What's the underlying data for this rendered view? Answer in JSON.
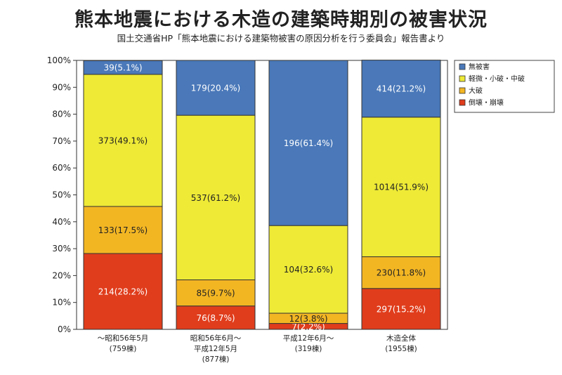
{
  "title": "熊本地震における木造の建築時期別の被害状況",
  "subtitle": "国土交通省HP「熊本地震における建築物被害の原因分析を行う委員会」報告書より",
  "chart_data": {
    "type": "bar",
    "stacked": true,
    "y_unit": "%",
    "ylim": [
      0,
      100
    ],
    "y_ticks": [
      "0%",
      "10%",
      "20%",
      "30%",
      "40%",
      "50%",
      "60%",
      "70%",
      "80%",
      "90%",
      "100%"
    ],
    "categories": [
      [
        "～昭和56年5月",
        "(759棟)"
      ],
      [
        "昭和56年6月～",
        "平成12年5月",
        "(877棟)"
      ],
      [
        "平成12年6月～",
        "(319棟)"
      ],
      [
        "木造全体",
        "(1955棟)"
      ]
    ],
    "series": [
      {
        "name": "倒壊・崩壊",
        "color": "#e03d1c",
        "text_color": "#ffffff",
        "values": [
          28.2,
          8.7,
          2.2,
          15.2
        ],
        "labels": [
          "214(28.2%)",
          "76(8.7%)",
          "7(2.2%)",
          "297(15.2%)"
        ]
      },
      {
        "name": "大破",
        "color": "#f3b623",
        "text_color": "#222222",
        "values": [
          17.5,
          9.7,
          3.8,
          11.8
        ],
        "labels": [
          "133(17.5%)",
          "85(9.7%)",
          "12(3.8%)",
          "230(11.8%)"
        ]
      },
      {
        "name": "軽微・小破・中破",
        "color": "#eeea36",
        "text_color": "#222222",
        "values": [
          49.1,
          61.2,
          32.6,
          51.9
        ],
        "labels": [
          "373(49.1%)",
          "537(61.2%)",
          "104(32.6%)",
          "1014(51.9%)"
        ]
      },
      {
        "name": "無被害",
        "color": "#4a78b9",
        "text_color": "#ffffff",
        "values": [
          5.1,
          20.4,
          61.4,
          21.2
        ],
        "labels": [
          "39(5.1%)",
          "179(20.4%)",
          "196(61.4%)",
          "414(21.2%)"
        ]
      }
    ],
    "legend_order": [
      "無被害",
      "軽微・小破・中破",
      "大破",
      "倒壊・崩壊"
    ],
    "legend_position": "right",
    "grid": false
  }
}
